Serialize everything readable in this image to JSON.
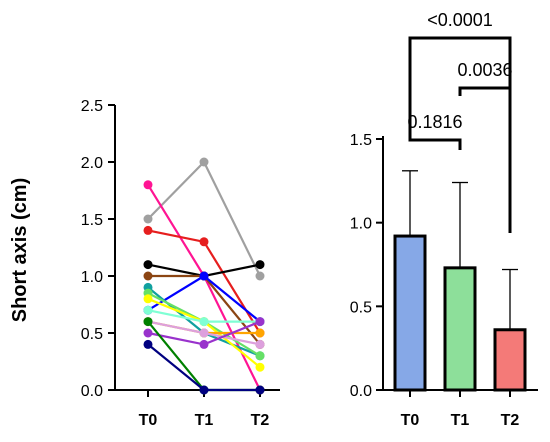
{
  "chart_data": [
    {
      "type": "line",
      "ylabel": "Short axis (cm)",
      "categories": [
        "T0",
        "T1",
        "T2"
      ],
      "ylim": [
        0,
        2.5
      ],
      "yticks": [
        "0.0",
        "0.5",
        "1.0",
        "1.5",
        "2.0",
        "2.5"
      ],
      "grid": false,
      "series": [
        {
          "color": "#a0a0a0",
          "values": [
            1.5,
            2.0,
            1.0
          ]
        },
        {
          "color": "#ff1493",
          "values": [
            1.8,
            1.0,
            0.0
          ]
        },
        {
          "color": "#e61e1e",
          "values": [
            1.4,
            1.3,
            0.5
          ]
        },
        {
          "color": "#000000",
          "values": [
            1.1,
            1.0,
            1.1
          ]
        },
        {
          "color": "#8b4513",
          "values": [
            1.0,
            1.0,
            0.4
          ]
        },
        {
          "color": "#0000ff",
          "values": [
            0.7,
            1.0,
            0.6
          ]
        },
        {
          "color": "#11a0a0",
          "values": [
            0.9,
            0.5,
            0.3
          ]
        },
        {
          "color": "#66e066",
          "values": [
            0.85,
            0.6,
            0.3
          ]
        },
        {
          "color": "#ffff00",
          "values": [
            0.8,
            0.6,
            0.2
          ]
        },
        {
          "color": "#7fffd4",
          "values": [
            0.7,
            0.6,
            0.6
          ]
        },
        {
          "color": "#ffa500",
          "values": [
            0.6,
            0.5,
            0.5
          ]
        },
        {
          "color": "#dda0dd",
          "values": [
            0.6,
            0.5,
            0.4
          ]
        },
        {
          "color": "#9932cc",
          "values": [
            0.5,
            0.4,
            0.6
          ]
        },
        {
          "color": "#008000",
          "values": [
            0.6,
            0.0,
            0.0
          ]
        },
        {
          "color": "#000080",
          "values": [
            0.4,
            0.0,
            0.0
          ]
        }
      ]
    },
    {
      "type": "bar",
      "categories": [
        "T0",
        "T1",
        "T2"
      ],
      "values": [
        0.92,
        0.73,
        0.36
      ],
      "error_upper": [
        1.31,
        1.24,
        0.72
      ],
      "colors": [
        "#86a8e7",
        "#8ddf9a",
        "#f47a78"
      ],
      "ylim": [
        0,
        1.5
      ],
      "yticks": [
        "0.0",
        "0.5",
        "1.0",
        "1.5"
      ],
      "grid": false,
      "comparisons": [
        {
          "from": "T0",
          "to": "T2",
          "p": "<0.0001"
        },
        {
          "from": "T1",
          "to": "T2",
          "p": "0.0036"
        },
        {
          "from": "T0",
          "to": "T1",
          "p": "0.1816"
        }
      ]
    }
  ]
}
